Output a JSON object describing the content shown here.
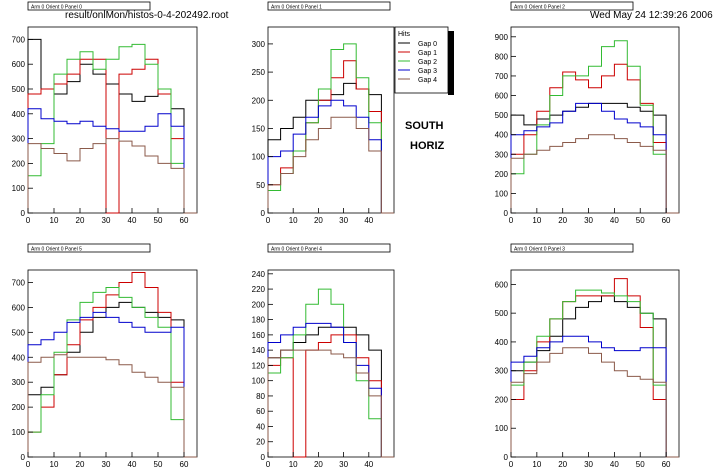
{
  "header": {
    "file_label": "result/onlMon/histos-0-4-202492.root",
    "timestamp": "Wed May 24 12:39:26 2006"
  },
  "side_text": {
    "line1": "SOUTH",
    "line2": "HORIZ"
  },
  "legend": {
    "title": "Hits",
    "entries": [
      "Gap 0",
      "Gap 1",
      "Gap 2",
      "Gap 3",
      "Gap 4"
    ]
  },
  "colors": {
    "Gap 0": "#000000",
    "Gap 1": "#cc0000",
    "Gap 2": "#33bb33",
    "Gap 3": "#0000cc",
    "Gap 4": "#8b5a4a"
  },
  "chart_data": [
    {
      "type": "line",
      "title": "Arm 0 Orient 0 Panel 0",
      "xlim": [
        0,
        65
      ],
      "ylim": [
        0,
        750
      ],
      "xticks": [
        0,
        10,
        20,
        30,
        40,
        50,
        60
      ],
      "yticks": [
        0,
        100,
        200,
        300,
        400,
        500,
        600,
        700
      ],
      "x": [
        0,
        5,
        10,
        15,
        20,
        25,
        30,
        35,
        40,
        45,
        50,
        55,
        60
      ],
      "series": [
        {
          "name": "Gap 0",
          "values": [
            700,
            500,
            480,
            530,
            600,
            560,
            520,
            480,
            450,
            470,
            500,
            420,
            0
          ]
        },
        {
          "name": "Gap 1",
          "values": [
            480,
            500,
            520,
            560,
            620,
            620,
            0,
            560,
            580,
            620,
            480,
            300,
            0
          ]
        },
        {
          "name": "Gap 2",
          "values": [
            150,
            280,
            560,
            620,
            650,
            580,
            620,
            670,
            680,
            600,
            500,
            200,
            0
          ]
        },
        {
          "name": "Gap 3",
          "values": [
            420,
            380,
            370,
            360,
            370,
            350,
            340,
            330,
            330,
            350,
            400,
            350,
            0
          ]
        },
        {
          "name": "Gap 4",
          "values": [
            280,
            260,
            240,
            210,
            260,
            280,
            300,
            290,
            270,
            230,
            200,
            180,
            0
          ]
        }
      ]
    },
    {
      "type": "line",
      "title": "Arm 0 Orient 0 Panel 1",
      "xlim": [
        0,
        50
      ],
      "ylim": [
        0,
        330
      ],
      "xticks": [
        0,
        10,
        20,
        30,
        40
      ],
      "yticks": [
        0,
        50,
        100,
        150,
        200,
        250,
        300
      ],
      "x": [
        0,
        5,
        10,
        15,
        20,
        25,
        30,
        35,
        40,
        45
      ],
      "series": [
        {
          "name": "Gap 0",
          "values": [
            130,
            150,
            170,
            200,
            200,
            210,
            230,
            220,
            210,
            0
          ]
        },
        {
          "name": "Gap 1",
          "values": [
            50,
            80,
            110,
            160,
            200,
            240,
            270,
            220,
            180,
            0
          ]
        },
        {
          "name": "Gap 2",
          "values": [
            40,
            70,
            110,
            160,
            220,
            290,
            300,
            240,
            160,
            0
          ]
        },
        {
          "name": "Gap 3",
          "values": [
            100,
            110,
            140,
            170,
            190,
            200,
            190,
            170,
            130,
            0
          ]
        },
        {
          "name": "Gap 4",
          "values": [
            50,
            70,
            100,
            130,
            150,
            170,
            170,
            150,
            110,
            0
          ]
        }
      ]
    },
    {
      "type": "line",
      "title": "Arm 0 Orient 0 Panel 2",
      "xlim": [
        0,
        65
      ],
      "ylim": [
        0,
        950
      ],
      "xticks": [
        0,
        10,
        20,
        30,
        40,
        50,
        60
      ],
      "yticks": [
        0,
        100,
        200,
        300,
        400,
        500,
        600,
        700,
        800,
        900
      ],
      "x": [
        0,
        5,
        10,
        15,
        20,
        25,
        30,
        35,
        40,
        45,
        50,
        55,
        60
      ],
      "series": [
        {
          "name": "Gap 0",
          "values": [
            500,
            450,
            480,
            500,
            520,
            540,
            560,
            560,
            560,
            540,
            520,
            500,
            0
          ]
        },
        {
          "name": "Gap 1",
          "values": [
            300,
            400,
            520,
            640,
            720,
            680,
            640,
            700,
            760,
            680,
            560,
            360,
            0
          ]
        },
        {
          "name": "Gap 2",
          "values": [
            200,
            300,
            450,
            600,
            700,
            700,
            750,
            850,
            880,
            750,
            550,
            300,
            0
          ]
        },
        {
          "name": "Gap 3",
          "values": [
            400,
            420,
            440,
            460,
            520,
            560,
            560,
            520,
            480,
            460,
            440,
            400,
            0
          ]
        },
        {
          "name": "Gap 4",
          "values": [
            280,
            300,
            320,
            340,
            360,
            380,
            400,
            400,
            380,
            360,
            340,
            320,
            0
          ]
        }
      ]
    },
    {
      "type": "line",
      "title": "Arm 0 Orient 0 Panel 5",
      "xlim": [
        0,
        65
      ],
      "ylim": [
        0,
        750
      ],
      "xticks": [
        0,
        10,
        20,
        30,
        40,
        50,
        60
      ],
      "yticks": [
        0,
        100,
        200,
        300,
        400,
        500,
        600,
        700
      ],
      "x": [
        0,
        5,
        10,
        15,
        20,
        25,
        30,
        35,
        40,
        45,
        50,
        55,
        60
      ],
      "series": [
        {
          "name": "Gap 0",
          "values": [
            250,
            280,
            330,
            420,
            500,
            560,
            600,
            620,
            600,
            580,
            560,
            550,
            0
          ]
        },
        {
          "name": "Gap 1",
          "values": [
            100,
            200,
            330,
            450,
            550,
            600,
            650,
            700,
            740,
            680,
            580,
            300,
            0
          ]
        },
        {
          "name": "Gap 2",
          "values": [
            100,
            250,
            420,
            550,
            620,
            660,
            680,
            640,
            600,
            560,
            520,
            150,
            0
          ]
        },
        {
          "name": "Gap 3",
          "values": [
            450,
            470,
            500,
            540,
            560,
            580,
            560,
            540,
            520,
            500,
            500,
            520,
            0
          ]
        },
        {
          "name": "Gap 4",
          "values": [
            380,
            400,
            410,
            400,
            400,
            400,
            390,
            370,
            340,
            320,
            300,
            280,
            0
          ]
        }
      ]
    },
    {
      "type": "line",
      "title": "Arm 0 Orient 0 Panel 4",
      "xlim": [
        0,
        50
      ],
      "ylim": [
        0,
        245
      ],
      "xticks": [
        0,
        10,
        20,
        30,
        40
      ],
      "yticks": [
        0,
        20,
        40,
        60,
        80,
        100,
        120,
        140,
        160,
        180,
        200,
        220,
        240
      ],
      "x": [
        0,
        5,
        10,
        15,
        20,
        25,
        30,
        35,
        40,
        45
      ],
      "series": [
        {
          "name": "Gap 0",
          "values": [
            130,
            140,
            150,
            160,
            170,
            170,
            170,
            160,
            140,
            0
          ]
        },
        {
          "name": "Gap 1",
          "values": [
            120,
            130,
            0,
            140,
            150,
            160,
            160,
            130,
            100,
            0
          ]
        },
        {
          "name": "Gap 2",
          "values": [
            110,
            130,
            160,
            200,
            220,
            200,
            150,
            100,
            50,
            0
          ]
        },
        {
          "name": "Gap 3",
          "values": [
            150,
            160,
            170,
            175,
            175,
            170,
            150,
            120,
            90,
            0
          ]
        },
        {
          "name": "Gap 4",
          "values": [
            130,
            140,
            140,
            140,
            140,
            135,
            130,
            110,
            80,
            0
          ]
        }
      ]
    },
    {
      "type": "line",
      "title": "Arm 0 Orient 0 Panel 3",
      "xlim": [
        0,
        65
      ],
      "ylim": [
        0,
        650
      ],
      "xticks": [
        0,
        10,
        20,
        30,
        40,
        50,
        60
      ],
      "yticks": [
        0,
        100,
        200,
        300,
        400,
        500,
        600
      ],
      "x": [
        0,
        5,
        10,
        15,
        20,
        25,
        30,
        35,
        40,
        45,
        50,
        55,
        60
      ],
      "series": [
        {
          "name": "Gap 0",
          "values": [
            300,
            330,
            370,
            420,
            480,
            520,
            540,
            560,
            540,
            520,
            500,
            480,
            0
          ]
        },
        {
          "name": "Gap 1",
          "values": [
            200,
            300,
            400,
            480,
            540,
            560,
            560,
            560,
            620,
            560,
            450,
            200,
            0
          ]
        },
        {
          "name": "Gap 2",
          "values": [
            250,
            330,
            420,
            480,
            540,
            580,
            580,
            570,
            560,
            540,
            500,
            250,
            0
          ]
        },
        {
          "name": "Gap 3",
          "values": [
            330,
            350,
            380,
            400,
            420,
            420,
            400,
            380,
            370,
            370,
            380,
            380,
            0
          ]
        },
        {
          "name": "Gap 4",
          "values": [
            260,
            290,
            330,
            360,
            380,
            380,
            360,
            330,
            300,
            280,
            270,
            260,
            0
          ]
        }
      ]
    }
  ]
}
